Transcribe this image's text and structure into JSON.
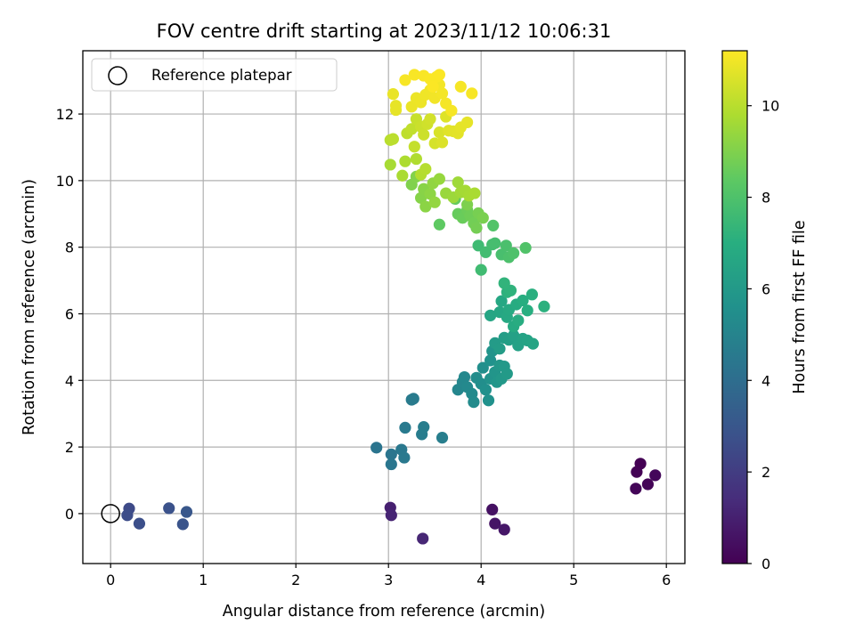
{
  "chart_data": {
    "type": "scatter",
    "title": "FOV centre drift starting at 2023/11/12 10:06:31",
    "xlabel": "Angular distance from reference (arcmin)",
    "ylabel": "Rotation from reference (arcmin)",
    "xlim": [
      -0.3,
      6.2
    ],
    "ylim": [
      -1.5,
      13.9
    ],
    "xticks": [
      0,
      1,
      2,
      3,
      4,
      5,
      6
    ],
    "yticks": [
      0,
      2,
      4,
      6,
      8,
      10,
      12
    ],
    "grid": true,
    "legend": {
      "position": "top-left",
      "entries": [
        "Reference platepar"
      ]
    },
    "reference_point": {
      "x": 0,
      "y": 0
    },
    "colorbar": {
      "label": "Hours from first FF file",
      "colormap": "viridis",
      "range": [
        0,
        11.2
      ],
      "ticks": [
        0,
        2,
        4,
        6,
        8,
        10
      ]
    },
    "series": [
      {
        "columns": [
          "x",
          "y",
          "hours"
        ],
        "points": [
          [
            5.72,
            1.5,
            0.0
          ],
          [
            5.68,
            1.25,
            0.05
          ],
          [
            5.8,
            0.88,
            0.1
          ],
          [
            5.67,
            0.75,
            0.15
          ],
          [
            5.88,
            1.15,
            0.2
          ],
          [
            4.12,
            0.12,
            0.5
          ],
          [
            4.15,
            -0.3,
            0.6
          ],
          [
            4.25,
            -0.48,
            0.7
          ],
          [
            3.02,
            0.18,
            1.0
          ],
          [
            3.03,
            -0.05,
            1.1
          ],
          [
            3.37,
            -0.75,
            1.2
          ],
          [
            0.2,
            0.15,
            2.5
          ],
          [
            0.18,
            -0.05,
            2.6
          ],
          [
            0.31,
            -0.3,
            2.7
          ],
          [
            0.63,
            0.16,
            2.8
          ],
          [
            0.78,
            -0.32,
            2.9
          ],
          [
            0.82,
            0.05,
            3.0
          ],
          [
            2.87,
            1.98,
            4.3
          ],
          [
            3.03,
            1.78,
            4.35
          ],
          [
            3.03,
            1.48,
            4.4
          ],
          [
            3.14,
            1.92,
            4.45
          ],
          [
            3.17,
            1.68,
            4.5
          ],
          [
            3.18,
            2.58,
            4.55
          ],
          [
            3.25,
            3.42,
            4.6
          ],
          [
            3.27,
            3.45,
            4.6
          ],
          [
            3.36,
            2.38,
            4.65
          ],
          [
            3.38,
            2.6,
            4.7
          ],
          [
            3.58,
            2.28,
            4.75
          ],
          [
            3.75,
            3.72,
            5.1
          ],
          [
            3.8,
            3.95,
            5.15
          ],
          [
            3.82,
            4.1,
            5.2
          ],
          [
            3.85,
            3.8,
            5.25
          ],
          [
            3.9,
            3.6,
            5.3
          ],
          [
            3.92,
            3.35,
            5.35
          ],
          [
            3.95,
            4.08,
            5.4
          ],
          [
            4.0,
            3.9,
            5.45
          ],
          [
            4.02,
            4.38,
            5.5
          ],
          [
            4.05,
            3.72,
            5.55
          ],
          [
            4.08,
            3.4,
            5.6
          ],
          [
            4.1,
            4.6,
            5.65
          ],
          [
            4.1,
            4.05,
            5.7
          ],
          [
            4.12,
            4.88,
            5.75
          ],
          [
            4.15,
            4.25,
            5.8
          ],
          [
            4.17,
            3.95,
            5.85
          ],
          [
            4.2,
            4.45,
            5.9
          ],
          [
            4.22,
            4.05,
            5.95
          ],
          [
            4.25,
            4.42,
            6.0
          ],
          [
            4.28,
            4.2,
            6.05
          ],
          [
            4.15,
            5.12,
            6.1
          ],
          [
            4.2,
            4.95,
            6.15
          ],
          [
            4.25,
            5.28,
            6.2
          ],
          [
            4.3,
            5.22,
            6.25
          ],
          [
            4.35,
            5.35,
            6.3
          ],
          [
            4.4,
            5.05,
            6.35
          ],
          [
            4.45,
            5.25,
            6.4
          ],
          [
            4.5,
            5.2,
            6.45
          ],
          [
            4.56,
            5.1,
            6.5
          ],
          [
            4.1,
            5.95,
            6.55
          ],
          [
            4.2,
            6.05,
            6.6
          ],
          [
            4.22,
            6.38,
            6.65
          ],
          [
            4.28,
            5.9,
            6.7
          ],
          [
            4.3,
            6.12,
            6.75
          ],
          [
            4.35,
            5.62,
            6.8
          ],
          [
            4.38,
            6.28,
            6.85
          ],
          [
            4.4,
            5.8,
            6.9
          ],
          [
            4.45,
            6.4,
            6.95
          ],
          [
            4.5,
            6.1,
            7.0
          ],
          [
            4.55,
            6.58,
            7.05
          ],
          [
            4.68,
            6.22,
            7.1
          ],
          [
            4.28,
            6.65,
            7.15
          ],
          [
            4.32,
            6.7,
            7.2
          ],
          [
            4.25,
            6.92,
            7.25
          ],
          [
            3.97,
            8.05,
            7.6
          ],
          [
            4.0,
            7.32,
            7.65
          ],
          [
            4.05,
            7.85,
            7.7
          ],
          [
            4.12,
            8.08,
            7.75
          ],
          [
            4.15,
            8.12,
            7.8
          ],
          [
            4.22,
            7.78,
            7.85
          ],
          [
            4.27,
            8.05,
            7.9
          ],
          [
            4.3,
            7.7,
            7.95
          ],
          [
            4.35,
            7.82,
            8.0
          ],
          [
            4.48,
            7.98,
            8.05
          ],
          [
            4.13,
            8.65,
            8.1
          ],
          [
            3.55,
            8.68,
            8.4
          ],
          [
            3.72,
            9.45,
            8.5
          ],
          [
            3.75,
            9.0,
            8.55
          ],
          [
            3.8,
            8.88,
            8.6
          ],
          [
            3.85,
            9.12,
            8.65
          ],
          [
            3.88,
            8.95,
            8.7
          ],
          [
            3.92,
            8.72,
            8.75
          ],
          [
            3.95,
            8.58,
            8.8
          ],
          [
            3.97,
            9.02,
            8.85
          ],
          [
            4.02,
            8.88,
            8.9
          ],
          [
            3.85,
            9.28,
            8.95
          ],
          [
            3.25,
            9.88,
            9.0
          ],
          [
            3.3,
            10.12,
            9.05
          ],
          [
            3.35,
            9.48,
            9.1
          ],
          [
            3.38,
            9.75,
            9.15
          ],
          [
            3.4,
            9.22,
            9.2
          ],
          [
            3.45,
            9.6,
            9.25
          ],
          [
            3.48,
            9.92,
            9.3
          ],
          [
            3.5,
            9.35,
            9.35
          ],
          [
            3.55,
            10.05,
            9.4
          ],
          [
            3.62,
            9.62,
            9.45
          ],
          [
            3.7,
            9.5,
            9.5
          ],
          [
            3.75,
            9.95,
            9.55
          ],
          [
            3.78,
            9.65,
            9.6
          ],
          [
            3.83,
            9.7,
            9.65
          ],
          [
            3.87,
            9.55,
            9.7
          ],
          [
            3.93,
            9.62,
            9.75
          ],
          [
            3.02,
            10.48,
            9.7
          ],
          [
            3.15,
            10.15,
            9.75
          ],
          [
            3.18,
            10.58,
            9.8
          ],
          [
            3.3,
            10.65,
            9.85
          ],
          [
            3.35,
            10.18,
            9.9
          ],
          [
            3.4,
            10.35,
            9.95
          ],
          [
            3.02,
            11.22,
            10.0
          ],
          [
            3.05,
            11.25,
            10.05
          ],
          [
            3.2,
            11.42,
            10.1
          ],
          [
            3.25,
            11.55,
            10.15
          ],
          [
            3.28,
            11.02,
            10.2
          ],
          [
            3.3,
            11.85,
            10.25
          ],
          [
            3.35,
            11.62,
            10.3
          ],
          [
            3.38,
            11.38,
            10.35
          ],
          [
            3.42,
            11.7,
            10.4
          ],
          [
            3.45,
            11.85,
            10.45
          ],
          [
            3.5,
            11.12,
            10.5
          ],
          [
            3.55,
            11.45,
            10.55
          ],
          [
            3.58,
            11.15,
            10.6
          ],
          [
            3.62,
            11.92,
            10.65
          ],
          [
            3.65,
            11.5,
            10.7
          ],
          [
            3.7,
            11.48,
            10.72
          ],
          [
            3.75,
            11.42,
            10.75
          ],
          [
            3.78,
            11.6,
            10.78
          ],
          [
            3.85,
            11.75,
            10.8
          ],
          [
            3.08,
            12.12,
            10.8
          ],
          [
            3.08,
            12.25,
            10.82
          ],
          [
            3.05,
            12.6,
            10.85
          ],
          [
            3.25,
            12.22,
            10.88
          ],
          [
            3.3,
            12.48,
            10.9
          ],
          [
            3.35,
            12.35,
            10.92
          ],
          [
            3.4,
            12.58,
            10.95
          ],
          [
            3.45,
            12.72,
            10.98
          ],
          [
            3.5,
            12.48,
            11.0
          ],
          [
            3.55,
            12.88,
            11.02
          ],
          [
            3.58,
            12.62,
            11.04
          ],
          [
            3.62,
            12.32,
            11.06
          ],
          [
            3.68,
            12.1,
            11.07
          ],
          [
            3.78,
            12.82,
            11.08
          ],
          [
            3.9,
            12.62,
            11.09
          ],
          [
            3.18,
            13.02,
            11.1
          ],
          [
            3.28,
            13.18,
            11.12
          ],
          [
            3.38,
            13.15,
            11.13
          ],
          [
            3.45,
            13.05,
            11.14
          ],
          [
            3.52,
            13.12,
            11.15
          ],
          [
            3.55,
            13.18,
            11.16
          ],
          [
            3.48,
            12.82,
            11.17
          ]
        ]
      }
    ]
  }
}
